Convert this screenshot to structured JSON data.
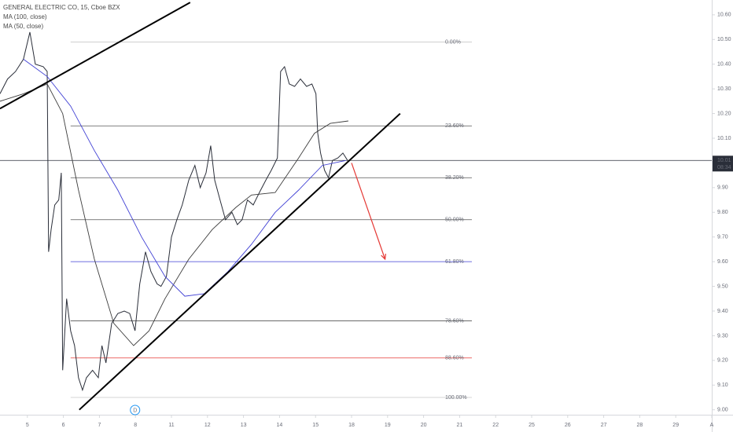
{
  "chart_data": {
    "type": "line",
    "title": "GENERAL ELECTRIC CO, 15, Cboe BZX",
    "xlim": [
      -0.76,
      19.0
    ],
    "ylim": [
      8.98,
      10.66
    ],
    "xticks": [
      {
        "value": 0,
        "label": "5"
      },
      {
        "value": 1,
        "label": "6"
      },
      {
        "value": 2,
        "label": "7"
      },
      {
        "value": 3,
        "label": "8"
      },
      {
        "value": 4,
        "label": "11"
      },
      {
        "value": 5,
        "label": "12"
      },
      {
        "value": 6,
        "label": "13"
      },
      {
        "value": 7,
        "label": "14"
      },
      {
        "value": 8,
        "label": "15"
      },
      {
        "value": 9,
        "label": "18"
      },
      {
        "value": 10,
        "label": "19"
      },
      {
        "value": 11,
        "label": "20"
      },
      {
        "value": 12,
        "label": "21"
      },
      {
        "value": 13,
        "label": "22"
      },
      {
        "value": 14,
        "label": "25"
      },
      {
        "value": 15,
        "label": "26"
      },
      {
        "value": 16,
        "label": "27"
      },
      {
        "value": 17,
        "label": "28"
      },
      {
        "value": 18,
        "label": "29"
      },
      {
        "value": 19,
        "label": "A"
      }
    ],
    "yticks": [
      {
        "value": 9.0,
        "label": "9.00"
      },
      {
        "value": 9.1,
        "label": "9.10"
      },
      {
        "value": 9.2,
        "label": "9.20"
      },
      {
        "value": 9.3,
        "label": "9.30"
      },
      {
        "value": 9.4,
        "label": "9.40"
      },
      {
        "value": 9.5,
        "label": "9.50"
      },
      {
        "value": 9.6,
        "label": "9.60"
      },
      {
        "value": 9.7,
        "label": "9.70"
      },
      {
        "value": 9.8,
        "label": "9.80"
      },
      {
        "value": 9.9,
        "label": "9.90"
      },
      {
        "value": 10.0,
        "label": "10.00"
      },
      {
        "value": 10.1,
        "label": "10.10"
      },
      {
        "value": 10.2,
        "label": "10.20"
      },
      {
        "value": 10.3,
        "label": "10.30"
      },
      {
        "value": 10.4,
        "label": "10.40"
      },
      {
        "value": 10.5,
        "label": "10.50"
      },
      {
        "value": 10.6,
        "label": "10.60"
      }
    ],
    "series": [
      {
        "color": "#2a2e39",
        "x": [
          -0.76,
          -0.55,
          -0.33,
          -0.11,
          0.07,
          0.22,
          0.44,
          0.55,
          0.59,
          0.66,
          0.76,
          0.87,
          0.94,
          0.98,
          1.09,
          1.2,
          1.31,
          1.42,
          1.53,
          1.64,
          1.81,
          1.97,
          2.07,
          2.18,
          2.34,
          2.51,
          2.69,
          2.84,
          2.99,
          3.12,
          3.28,
          3.43,
          3.6,
          3.71,
          3.86,
          4.0,
          4.15,
          4.3,
          4.48,
          4.65,
          4.8,
          4.96,
          5.09,
          5.2,
          5.35,
          5.5,
          5.68,
          5.83,
          5.96,
          6.11,
          6.27,
          6.44,
          6.62,
          6.77,
          6.94,
          7.03,
          7.14,
          7.27,
          7.42,
          7.58,
          7.75,
          7.9,
          8.01,
          8.06,
          8.14,
          8.25,
          8.36,
          8.47,
          8.62,
          8.76,
          8.89
        ],
        "values": [
          10.28,
          10.34,
          10.37,
          10.42,
          10.53,
          10.4,
          10.39,
          10.37,
          9.64,
          9.73,
          9.83,
          9.85,
          9.96,
          9.16,
          9.45,
          9.32,
          9.26,
          9.13,
          9.08,
          9.13,
          9.16,
          9.13,
          9.26,
          9.19,
          9.35,
          9.39,
          9.4,
          9.39,
          9.32,
          9.51,
          9.64,
          9.56,
          9.51,
          9.5,
          9.54,
          9.7,
          9.77,
          9.83,
          9.93,
          9.99,
          9.9,
          9.96,
          10.07,
          9.93,
          9.85,
          9.77,
          9.8,
          9.75,
          9.77,
          9.85,
          9.83,
          9.88,
          9.93,
          9.97,
          10.02,
          10.37,
          10.39,
          10.32,
          10.31,
          10.34,
          10.31,
          10.32,
          10.28,
          10.12,
          10.04,
          9.97,
          9.94,
          10.01,
          10.02,
          10.04,
          10.01
        ]
      },
      {
        "name": "MA (100, close)",
        "color": "#3c3c3c",
        "x": [
          -0.76,
          -0.11,
          0.55,
          0.98,
          1.42,
          1.86,
          2.4,
          2.95,
          3.38,
          3.82,
          4.48,
          5.13,
          5.79,
          6.22,
          6.88,
          7.53,
          7.97,
          8.41,
          8.91
        ],
        "values": [
          10.25,
          10.28,
          10.32,
          10.2,
          9.89,
          9.61,
          9.35,
          9.26,
          9.32,
          9.45,
          9.61,
          9.73,
          9.82,
          9.87,
          9.88,
          10.02,
          10.12,
          10.16,
          10.17
        ]
      },
      {
        "name": "MA (50, close)",
        "color": "#3f3fd4",
        "x": [
          -0.11,
          0.55,
          1.2,
          1.86,
          2.51,
          3.17,
          3.82,
          4.37,
          4.91,
          5.57,
          6.22,
          6.88,
          7.53,
          8.19,
          8.84
        ],
        "values": [
          10.42,
          10.35,
          10.23,
          10.05,
          9.89,
          9.7,
          9.54,
          9.46,
          9.47,
          9.56,
          9.67,
          9.8,
          9.89,
          9.99,
          10.01
        ]
      }
    ],
    "fib_x": [
      1.2,
      12.34
    ],
    "fib_levels": [
      {
        "label": "0.00%",
        "value": 10.49,
        "color": "#c8c8c8"
      },
      {
        "label": "23.60%",
        "value": 10.15,
        "color": "#555555"
      },
      {
        "label": "38.20%",
        "value": 9.94,
        "color": "#555555"
      },
      {
        "label": "50.00%",
        "value": 9.77,
        "color": "#555555"
      },
      {
        "label": "61.80%",
        "value": 9.6,
        "color": "#3f3fd4"
      },
      {
        "label": "78.60%",
        "value": 9.36,
        "color": "#555555"
      },
      {
        "label": "88.60%",
        "value": 9.21,
        "color": "#e53935"
      },
      {
        "label": "100.00%",
        "value": 9.05,
        "color": "#c8c8c8"
      }
    ],
    "trendlines": [
      {
        "x": [
          -0.76,
          4.52
        ],
        "y": [
          10.22,
          10.65
        ],
        "color": "#000000"
      },
      {
        "x": [
          1.44,
          10.35
        ],
        "y": [
          9.0,
          10.2
        ],
        "color": "#000000"
      }
    ],
    "arrow": {
      "x": [
        9.0,
        9.93
      ],
      "y": [
        10.0,
        9.61
      ],
      "color": "#e53935"
    },
    "last_price": 10.01,
    "countdown": "08:34",
    "dividend": {
      "x": 2.99,
      "label": "D"
    }
  }
}
